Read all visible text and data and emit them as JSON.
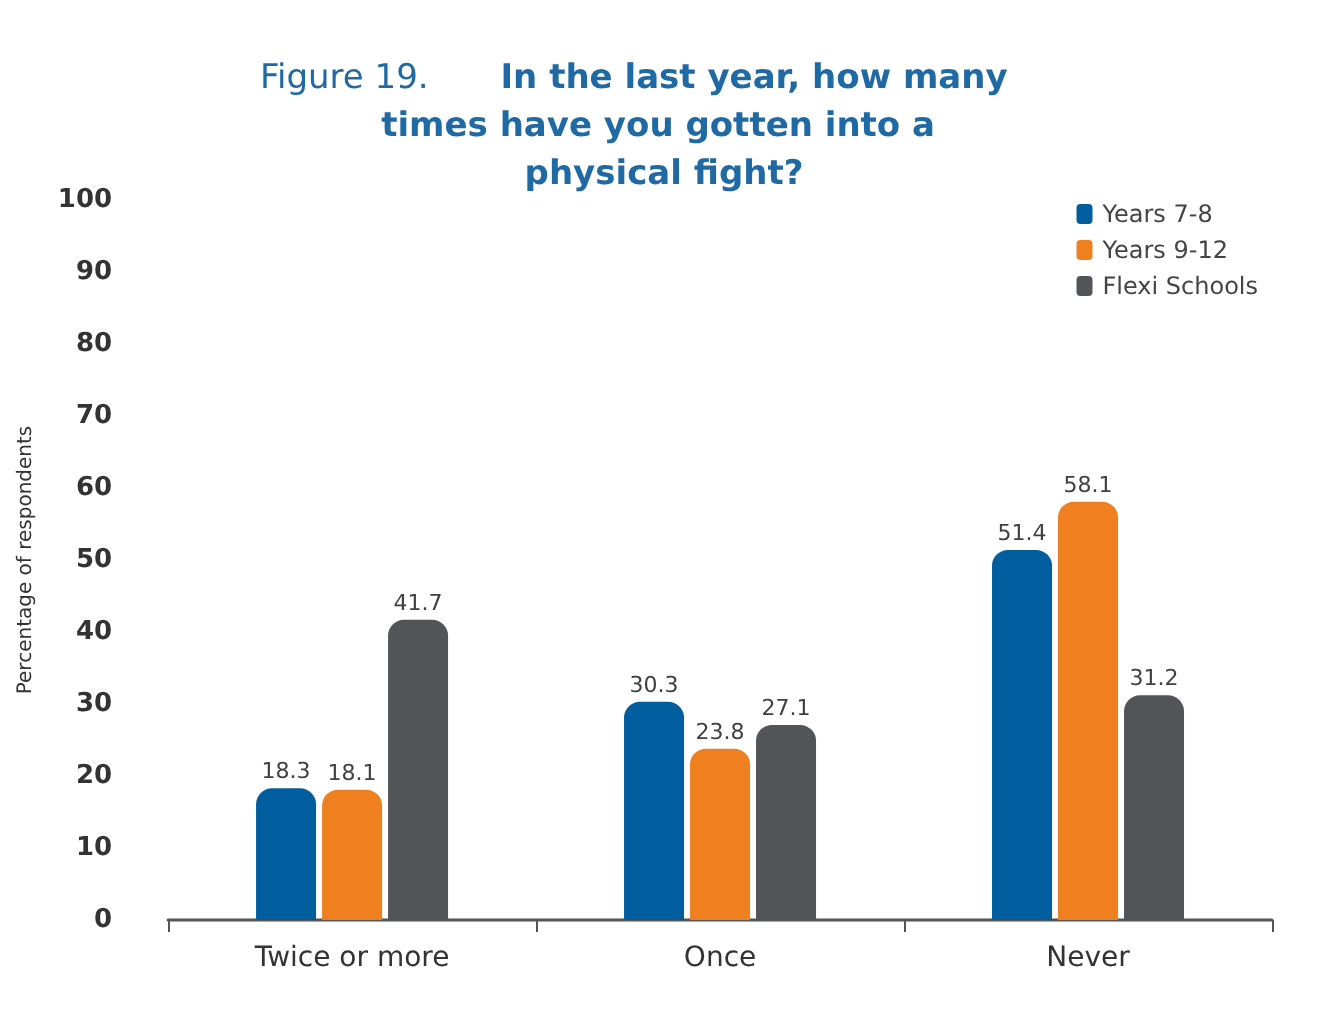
{
  "chart_data": {
    "type": "bar",
    "title": "Figure 19. In the last year, how many times have you gotten into a physical fight?",
    "ylabel": "Percentage of respondents",
    "categories": [
      "Twice or more",
      "Once",
      "Never"
    ],
    "series": [
      {
        "name": "Years 7-8",
        "color": "#005e9e",
        "values": [
          18.3,
          30.3,
          51.4
        ]
      },
      {
        "name": "Years 9-12",
        "color": "#ef7f1f",
        "values": [
          18.1,
          23.8,
          58.1
        ]
      },
      {
        "name": "Flexi Schools",
        "color": "#535458",
        "values": [
          41.7,
          27.1,
          31.2
        ]
      }
    ],
    "ylim": [
      0,
      100
    ],
    "yticks": [
      0,
      10,
      20,
      30,
      40,
      50,
      60,
      70,
      80,
      90,
      100
    ],
    "grid": false,
    "legend": "top right",
    "data_labels": true
  }
}
